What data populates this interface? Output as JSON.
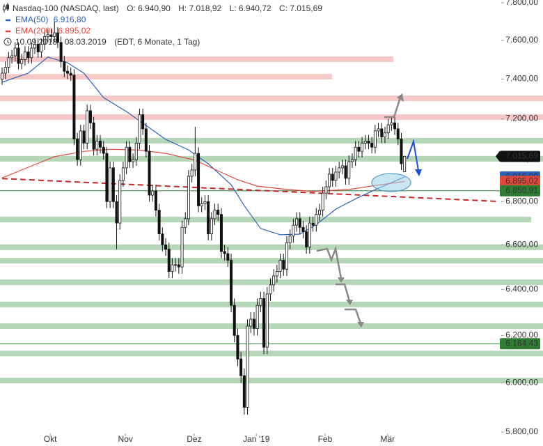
{
  "chart_data": {
    "type": "candlestick",
    "title": "Nasdaq-100 (NASDAQ, last)",
    "ohlc_labels": [
      "O: 6.940,90",
      "H: 7.018,92",
      "L: 6.940,72",
      "C: 7.015,69"
    ],
    "subtitle": "10.09.2018 - 08.03.2019",
    "subtitle_note": "(EDT, 6 Monate, 1 Tag)",
    "log_scale": true,
    "grid": false,
    "ylim": [
      5800,
      7800
    ],
    "yticks": [
      {
        "value": 5800,
        "label": "5.800,00"
      },
      {
        "value": 6000,
        "label": "6.000,00"
      },
      {
        "value": 6200,
        "label": "6.200,00"
      },
      {
        "value": 6400,
        "label": "6.400,00"
      },
      {
        "value": 6600,
        "label": "6.600,00"
      },
      {
        "value": 6800,
        "label": "6.800,00"
      },
      {
        "value": 7000,
        "label": "7.000,00"
      },
      {
        "value": 7200,
        "label": "7.200,00"
      },
      {
        "value": 7400,
        "label": "7.400,00"
      },
      {
        "value": 7600,
        "label": "7.600,00"
      },
      {
        "value": 7800,
        "label": "7.800,00"
      }
    ],
    "xlim": [
      -0.64,
      165.3
    ],
    "xticks": [
      {
        "value": 14.7,
        "label": "Okt"
      },
      {
        "value": 37.7,
        "label": "Nov"
      },
      {
        "value": 58.7,
        "label": "Dez"
      },
      {
        "value": 77.7,
        "label": "Jan '19"
      },
      {
        "value": 98.7,
        "label": "Feb"
      },
      {
        "value": 117.8,
        "label": "Mär"
      }
    ],
    "categories": [
      null,
      null,
      null,
      null,
      null,
      null,
      null,
      null,
      null,
      null,
      null,
      null,
      null,
      null,
      null,
      null,
      null,
      null,
      null,
      null,
      null,
      null,
      null,
      null,
      null,
      null,
      null,
      null,
      null,
      null,
      null,
      null,
      null,
      null,
      null,
      null,
      null,
      null,
      null,
      null,
      null,
      null,
      null,
      null,
      null,
      null,
      null,
      null,
      null,
      null,
      null,
      null,
      null,
      null,
      null,
      null,
      null,
      null,
      null,
      null,
      null,
      null,
      null,
      null,
      null,
      null,
      null,
      null,
      null,
      null,
      null,
      null,
      null,
      null,
      null,
      null,
      null,
      null,
      null,
      null,
      null,
      null,
      null,
      null,
      null,
      null,
      null,
      null,
      null,
      null,
      null,
      null,
      null,
      null,
      null,
      null,
      null,
      null,
      null,
      null,
      null,
      null,
      null,
      null,
      null,
      null,
      null,
      null,
      null,
      null,
      null,
      null,
      null,
      null,
      null,
      null,
      null,
      null,
      null,
      null,
      null,
      null,
      null,
      null
    ],
    "open": [
      7400,
      7430,
      7460,
      7510,
      7520,
      7560,
      7480,
      7500,
      7540,
      7510,
      7560,
      7580,
      7540,
      7580,
      7620,
      7630,
      7620,
      7640,
      7590,
      7490,
      7440,
      7430,
      7420,
      7100,
      7000,
      7140,
      7080,
      7240,
      7180,
      7050,
      7090,
      7060,
      7030,
      6800,
      6960,
      6800,
      6700,
      6900,
      6960,
      7060,
      6990,
      7000,
      7080,
      7220,
      7150,
      7040,
      6830,
      6850,
      6760,
      6650,
      6600,
      6580,
      6480,
      6510,
      6510,
      6500,
      6680,
      6720,
      6920,
      6950,
      7030,
      6780,
      6790,
      6800,
      6650,
      6720,
      6760,
      6740,
      6570,
      6560,
      6530,
      6330,
      6200,
      6100,
      6030,
      5900,
      6240,
      6270,
      6230,
      6330,
      6360,
      6150,
      6380,
      6420,
      6460,
      6480,
      6530,
      6490,
      6610,
      6640,
      6690,
      6720,
      6680,
      6660,
      6590,
      6700,
      6690,
      6740,
      6760,
      6840,
      6870,
      6930,
      6900,
      6940,
      6960,
      6970,
      6910,
      6990,
      7000,
      7060,
      7040,
      7080,
      7090,
      7080,
      7060,
      7140,
      7150,
      7110,
      7130,
      7170,
      7180,
      7150,
      7100,
      6940.9
    ],
    "high": [
      7460,
      7490,
      7540,
      7550,
      7590,
      7590,
      7530,
      7570,
      7570,
      7590,
      7610,
      7610,
      7610,
      7650,
      7660,
      7660,
      7700,
      7670,
      7620,
      7520,
      7470,
      7460,
      7450,
      7130,
      7170,
      7170,
      7270,
      7270,
      7210,
      7120,
      7120,
      7090,
      7060,
      6990,
      6990,
      6830,
      6930,
      6990,
      7090,
      7090,
      7030,
      7110,
      7250,
      7250,
      7180,
      7070,
      6880,
      6880,
      6790,
      6680,
      6630,
      6610,
      6540,
      6540,
      6540,
      6710,
      6750,
      6950,
      6980,
      7160,
      7060,
      6820,
      6830,
      6830,
      6750,
      6790,
      6790,
      6770,
      6600,
      6590,
      6560,
      6360,
      6230,
      6130,
      6060,
      6270,
      6300,
      6300,
      6360,
      6390,
      6390,
      6410,
      6450,
      6490,
      6510,
      6560,
      6560,
      6640,
      6670,
      6720,
      6750,
      6750,
      6710,
      6690,
      6730,
      6730,
      6770,
      6790,
      6870,
      6900,
      6960,
      6960,
      6970,
      6990,
      7000,
      7000,
      7020,
      7030,
      7090,
      7090,
      7110,
      7120,
      7120,
      7110,
      7170,
      7180,
      7180,
      7160,
      7200,
      7210,
      7210,
      7180,
      7130,
      7018.92
    ],
    "low": [
      7370,
      7400,
      7430,
      7480,
      7490,
      7450,
      7450,
      7470,
      7480,
      7480,
      7530,
      7510,
      7510,
      7550,
      7590,
      7590,
      7590,
      7560,
      7460,
      7410,
      7400,
      7390,
      7070,
      6970,
      6970,
      7050,
      7050,
      7150,
      7020,
      7020,
      7030,
      7000,
      6770,
      6770,
      6770,
      6580,
      6670,
      6870,
      6930,
      6960,
      6960,
      6970,
      7050,
      7120,
      7010,
      6800,
      6800,
      6730,
      6620,
      6570,
      6550,
      6450,
      6450,
      6480,
      6470,
      6470,
      6650,
      6690,
      6890,
      6920,
      6750,
      6750,
      6760,
      6620,
      6620,
      6690,
      6710,
      6540,
      6530,
      6500,
      6300,
      6170,
      6070,
      6000,
      5870,
      5870,
      6210,
      6200,
      6200,
      6300,
      6120,
      6120,
      6350,
      6390,
      6430,
      6450,
      6460,
      6460,
      6580,
      6610,
      6660,
      6650,
      6630,
      6560,
      6560,
      6660,
      6660,
      6710,
      6730,
      6810,
      6840,
      6870,
      6870,
      6910,
      6930,
      6880,
      6880,
      6960,
      6970,
      7010,
      7010,
      7050,
      7050,
      7030,
      7030,
      7110,
      7080,
      7080,
      7100,
      7140,
      7120,
      7070,
      6950,
      6940.72
    ],
    "close": [
      7430,
      7460,
      7510,
      7520,
      7560,
      7480,
      7500,
      7540,
      7510,
      7560,
      7580,
      7540,
      7580,
      7620,
      7630,
      7620,
      7640,
      7590,
      7490,
      7440,
      7430,
      7420,
      7100,
      7000,
      7140,
      7080,
      7240,
      7180,
      7050,
      7090,
      7060,
      7030,
      6800,
      6960,
      6800,
      6700,
      6900,
      6960,
      7060,
      6990,
      7000,
      7080,
      7220,
      7150,
      7040,
      6830,
      6850,
      6760,
      6650,
      6600,
      6580,
      6480,
      6510,
      6510,
      6500,
      6680,
      6720,
      6920,
      6950,
      7030,
      6780,
      6790,
      6800,
      6650,
      6720,
      6760,
      6740,
      6570,
      6560,
      6530,
      6330,
      6200,
      6100,
      6030,
      5900,
      6240,
      6270,
      6230,
      6330,
      6360,
      6150,
      6380,
      6420,
      6460,
      6480,
      6530,
      6490,
      6610,
      6640,
      6690,
      6720,
      6680,
      6660,
      6590,
      6700,
      6690,
      6740,
      6760,
      6840,
      6870,
      6930,
      6900,
      6940,
      6960,
      6970,
      6910,
      6990,
      7000,
      7060,
      7040,
      7080,
      7090,
      7080,
      7060,
      7140,
      7150,
      7110,
      7130,
      7170,
      7180,
      7150,
      7100,
      6980,
      7015.69
    ],
    "price_label": {
      "value": 7015.69,
      "label": "7.015,69"
    },
    "series": [
      {
        "name": "EMA(50)",
        "color": "#2d62b8",
        "value_label": "6.916,80",
        "x": [
          0,
          8,
          14,
          20,
          25,
          31,
          38,
          44,
          50,
          57,
          63,
          70,
          74,
          79,
          85,
          91,
          96,
          102,
          108,
          114,
          123
        ],
        "values": [
          7384,
          7430,
          7513,
          7484,
          7430,
          7306,
          7236,
          7167,
          7098,
          7047,
          6980,
          6880,
          6781,
          6675,
          6646,
          6649,
          6693,
          6765,
          6813,
          6856,
          6916.8
        ]
      },
      {
        "name": "EMA(200)",
        "color": "#e0483a",
        "value_label": "6.895,02",
        "x": [
          0,
          8,
          16,
          25,
          33,
          42,
          50,
          59,
          65,
          72,
          78,
          87,
          95,
          106,
          114,
          123
        ],
        "values": [
          6912,
          6963,
          7014,
          7040,
          7050,
          7046,
          7030,
          6997,
          6953,
          6903,
          6873,
          6857,
          6848,
          6857,
          6876,
          6895.02
        ]
      }
    ],
    "trendline": {
      "color": "#c62828",
      "x": [
        0,
        151.5
      ],
      "values": [
        6909,
        6801
      ]
    },
    "zones": [
      {
        "value": 7502,
        "color": "#f7c9c6",
        "x_end": 119.6
      },
      {
        "value": 7412,
        "color": "#f7c9c6",
        "x_end": 100.8
      },
      {
        "value": 7302,
        "color": "#f7c9c6"
      },
      {
        "value": 7208,
        "color": "#f7c9c6"
      },
      {
        "value": 7092,
        "color": "#b5d6b7"
      },
      {
        "value": 7004,
        "color": "#b5d6b7"
      },
      {
        "value": 6716,
        "color": "#b5d6b7",
        "x_end": 161.7
      },
      {
        "value": 6589,
        "color": "#b5d6b7"
      },
      {
        "value": 6528,
        "color": "#b5d6b7"
      },
      {
        "value": 6432,
        "color": "#b5d6b7"
      },
      {
        "value": 6334,
        "color": "#b5d6b7"
      },
      {
        "value": 6240,
        "color": "#b5d6b7"
      },
      {
        "value": 6123,
        "color": "#b5d6b7"
      },
      {
        "value": 6010,
        "color": "#b5d6b7"
      }
    ],
    "levels": [
      {
        "value": 6850.91,
        "label": "6.850,91",
        "color": "#2e7d32"
      },
      {
        "value": 6164.43,
        "label": "6.164,43",
        "color": "#2e7d32"
      }
    ]
  }
}
